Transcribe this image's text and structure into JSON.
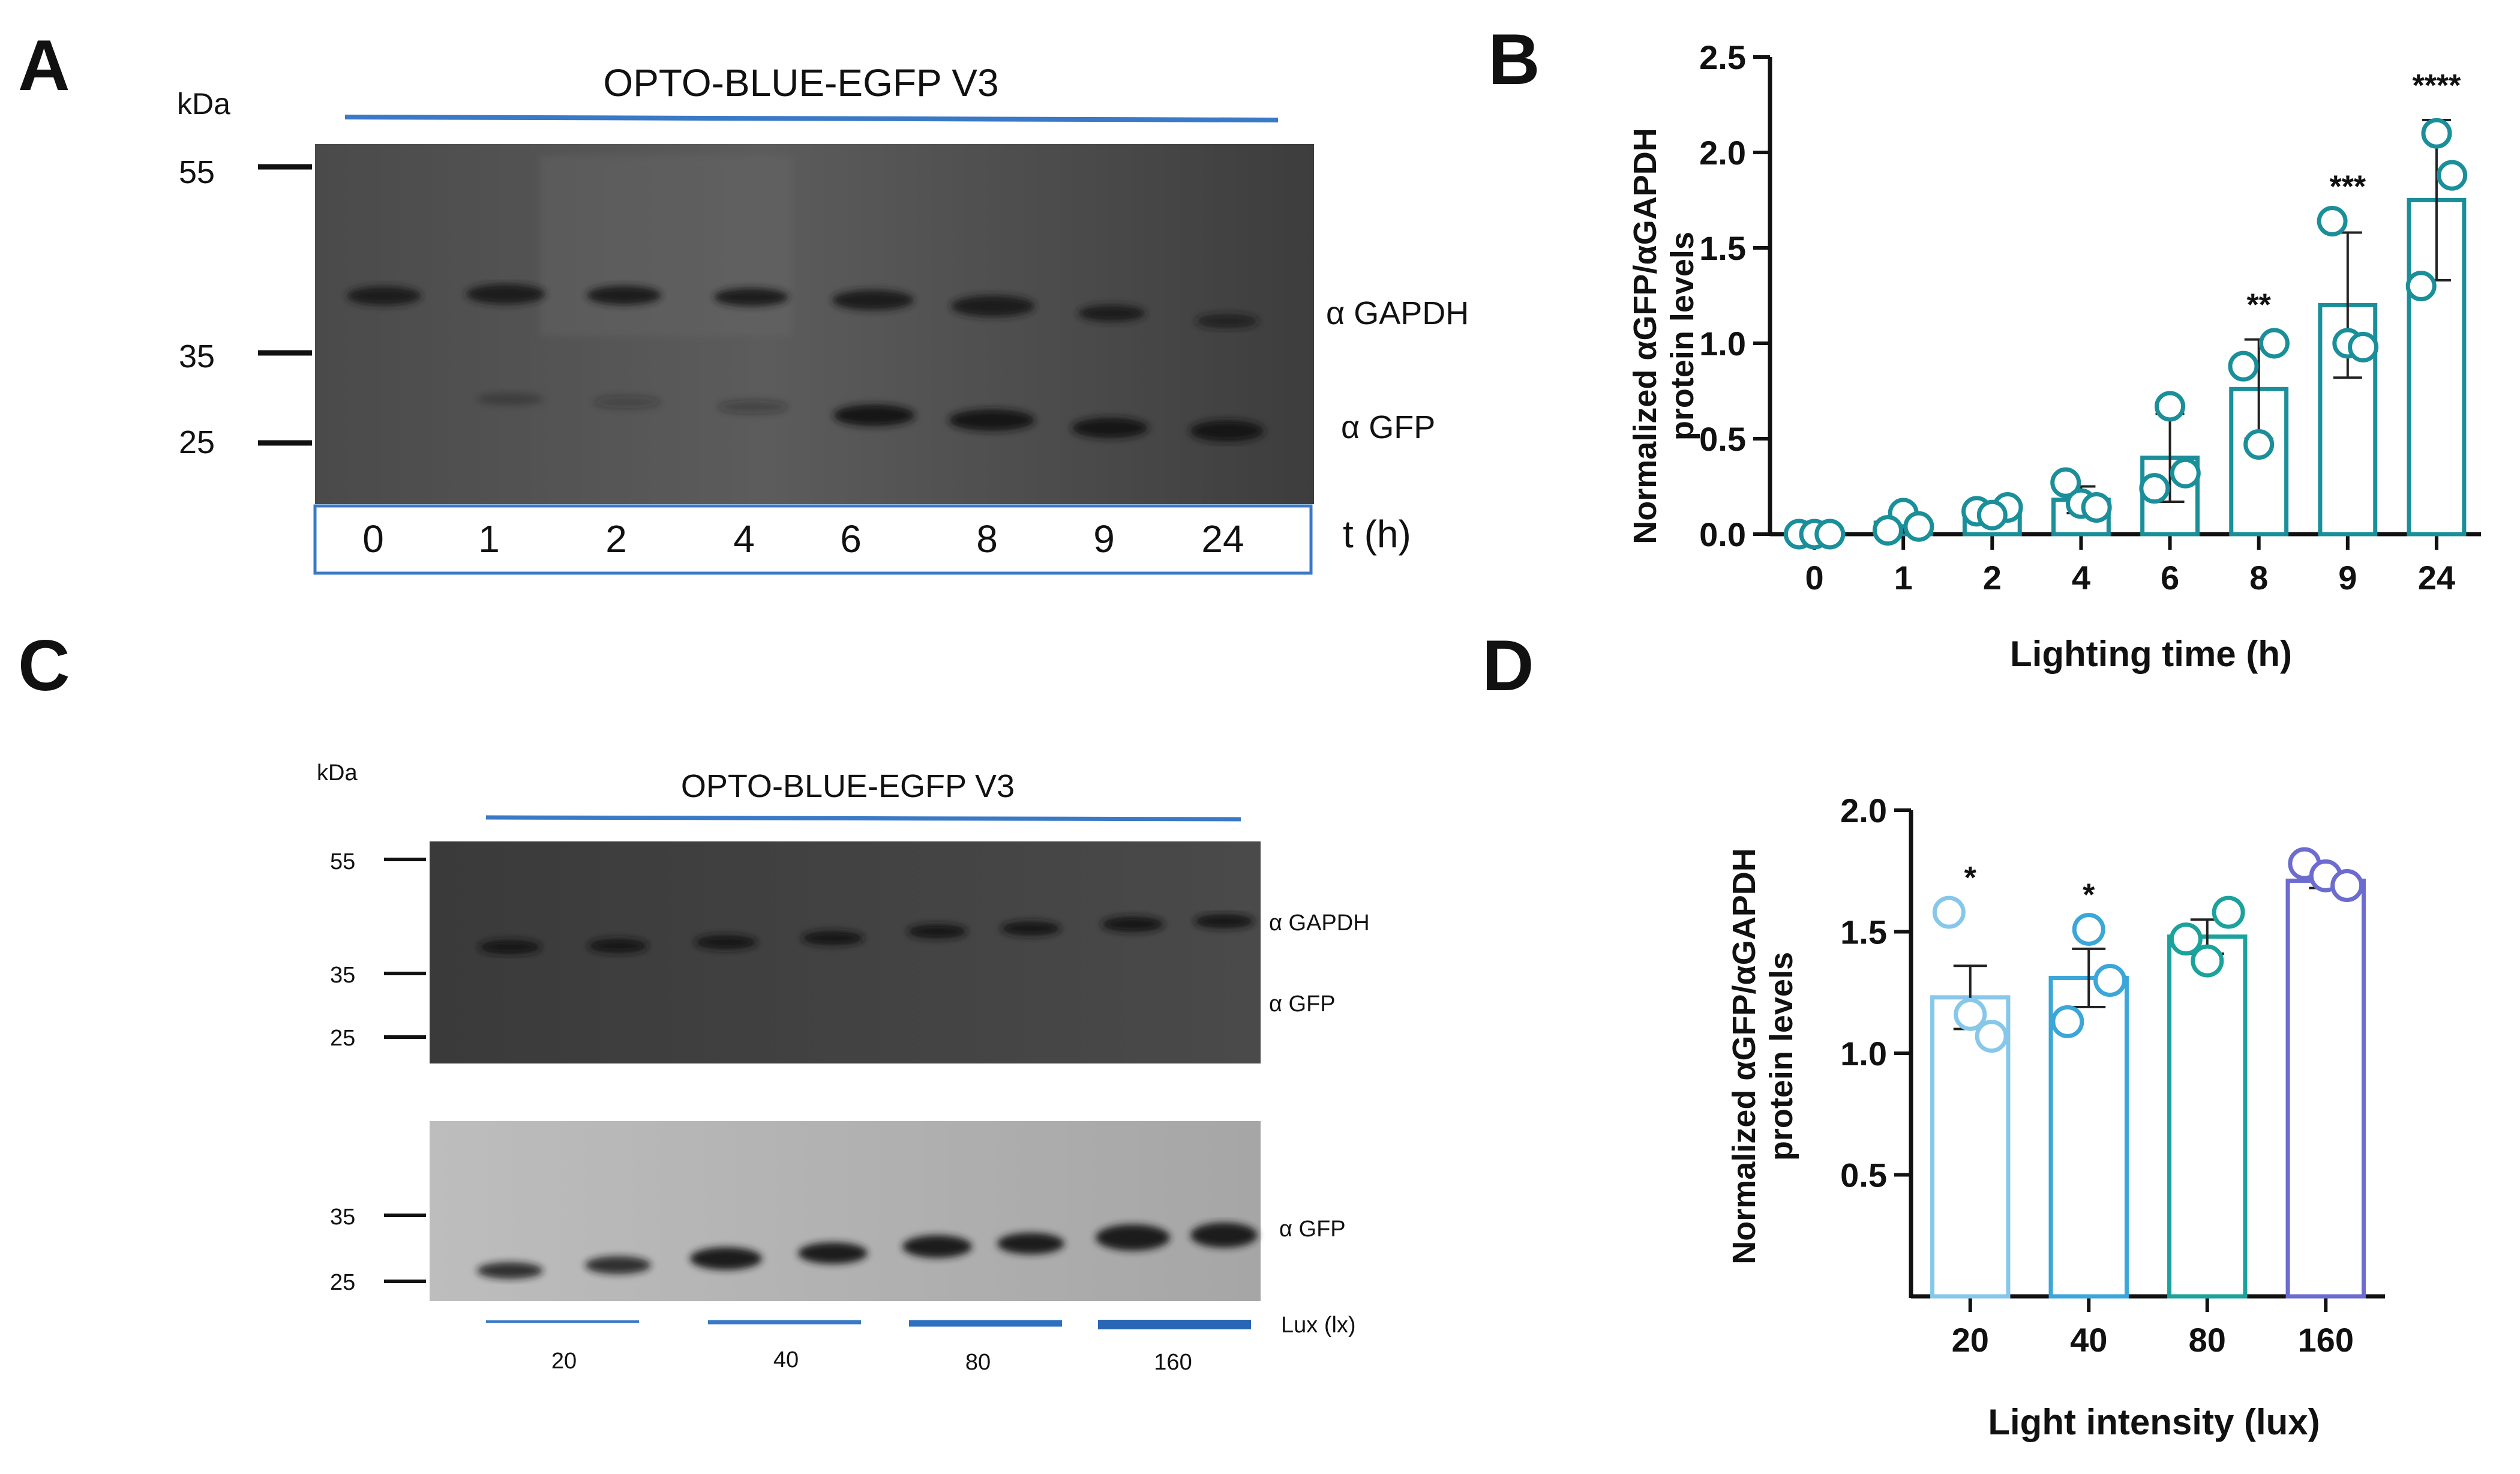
{
  "panels": {
    "a": {
      "letter": "A",
      "title": "OPTO-BLUE-EGFP V3",
      "kda_label": "kDa",
      "markers": [
        "55",
        "35",
        "25"
      ],
      "band_labels": [
        "α GAPDH",
        "α GFP"
      ],
      "lane_labels": [
        "0",
        "1",
        "2",
        "4",
        "6",
        "8",
        "9",
        "24"
      ],
      "time_label": "t (h)"
    },
    "b": {
      "letter": "B"
    },
    "c": {
      "letter": "C",
      "title": "OPTO-BLUE-EGFP V3",
      "kda_label": "kDa",
      "top_markers": [
        "55",
        "35",
        "25"
      ],
      "top_band_labels": [
        "α GAPDH",
        "α GFP"
      ],
      "bottom_markers": [
        "35",
        "25"
      ],
      "bottom_band_label": "α GFP",
      "lux_label": "Lux (lx)",
      "lux_values": [
        "20",
        "40",
        "80",
        "160"
      ]
    },
    "d": {
      "letter": "D"
    }
  },
  "chart_data": [
    {
      "id": "B",
      "type": "bar",
      "categories": [
        "0",
        "1",
        "2",
        "4",
        "6",
        "8",
        "9",
        "24"
      ],
      "values": [
        0.0,
        0.06,
        0.12,
        0.18,
        0.4,
        0.76,
        1.2,
        1.75
      ],
      "error": [
        0.02,
        0.05,
        0.03,
        0.07,
        0.23,
        0.26,
        0.38,
        0.42
      ],
      "points": [
        [
          0,
          0,
          0
        ],
        [
          0.11,
          0.04,
          0.02
        ],
        [
          0.14,
          0.12,
          0.1
        ],
        [
          0.27,
          0.16,
          0.14
        ],
        [
          0.67,
          0.32,
          0.24
        ],
        [
          1.0,
          0.88,
          0.47
        ],
        [
          1.64,
          1.0,
          0.98
        ],
        [
          2.1,
          1.88,
          1.3
        ]
      ],
      "annotations": [
        "",
        "",
        "",
        "",
        "",
        "**",
        "***",
        "****"
      ],
      "ylim": [
        0,
        2.5
      ],
      "yticks": [
        "0.0",
        "0.5",
        "1.0",
        "1.5",
        "2.0",
        "2.5"
      ],
      "ylabel_line1": "Normalized αGFP/αGAPDH",
      "ylabel_line2": "protein levels",
      "xlabel": "Lighting time (h)",
      "color": "#1a8f9a"
    },
    {
      "id": "D",
      "type": "bar",
      "categories": [
        "20",
        "40",
        "80",
        "160"
      ],
      "values": [
        1.23,
        1.31,
        1.48,
        1.71
      ],
      "error": [
        0.13,
        0.12,
        0.07,
        0.03
      ],
      "points": [
        [
          1.58,
          1.16,
          1.07
        ],
        [
          1.51,
          1.3,
          1.13
        ],
        [
          1.58,
          1.47,
          1.38
        ],
        [
          1.78,
          1.73,
          1.69
        ]
      ],
      "annotations": [
        "*",
        "*",
        "",
        ""
      ],
      "colors": [
        "#86c7ea",
        "#3ba6d8",
        "#1ba29c",
        "#6b6bd0"
      ],
      "ylim": [
        0,
        2.0
      ],
      "yticks": [
        "0.5",
        "1.0",
        "1.5",
        "2.0"
      ],
      "ylabel_line1": "Normalized αGFP/αGAPDH",
      "ylabel_line2": "protein levels",
      "xlabel": "Light intensity (lux)"
    }
  ]
}
